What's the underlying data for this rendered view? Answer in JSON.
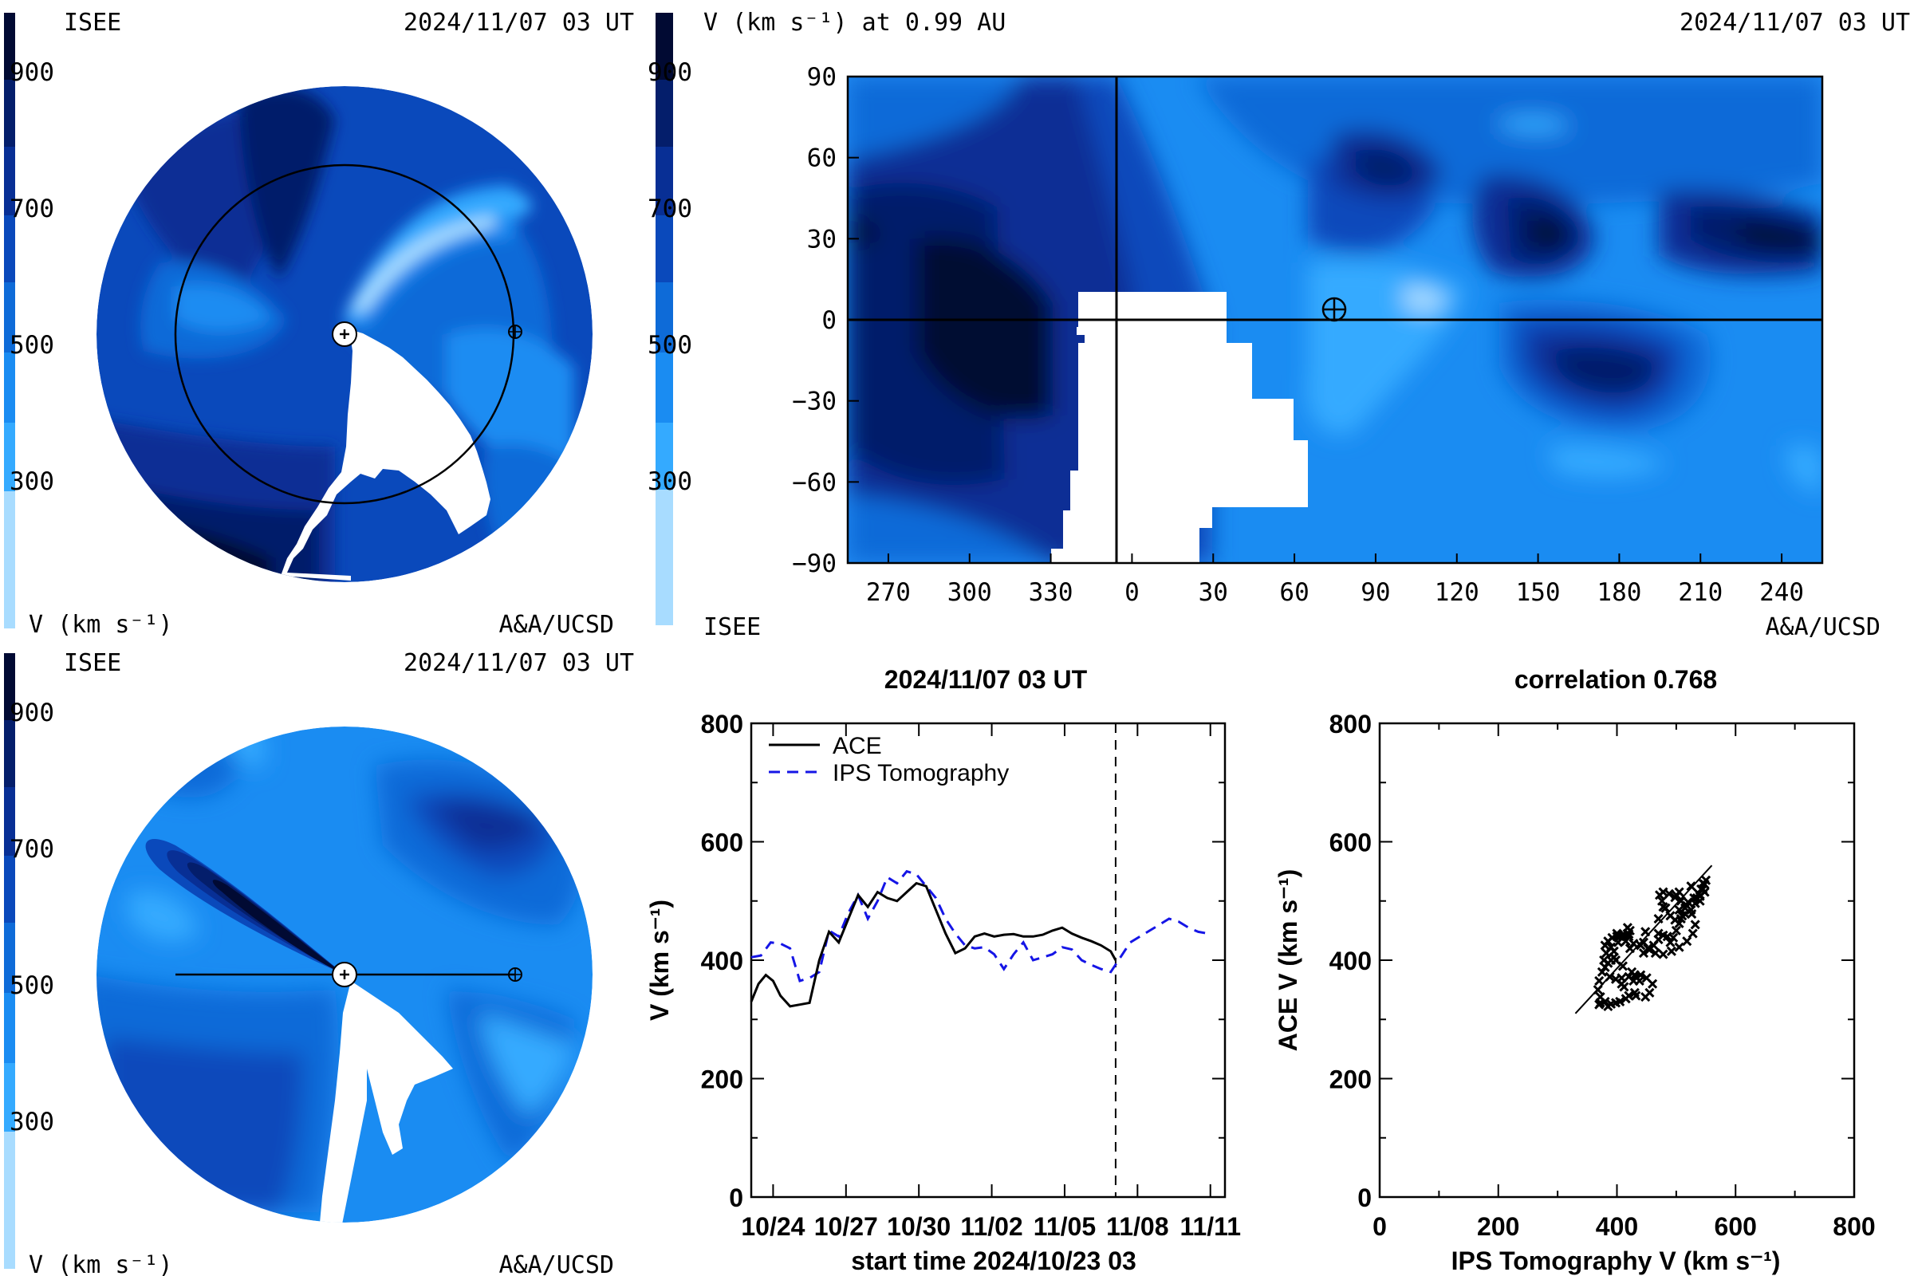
{
  "colors": {
    "c250": "#a8dcff",
    "c300": "#34aaff",
    "c400": "#1a8cf2",
    "c500": "#0e6bd8",
    "c600": "#0a49bb",
    "c700": "#082f95",
    "c800": "#041e6b",
    "c900": "#010a33",
    "ace_line": "#000000",
    "ips_line": "#1515e6"
  },
  "panels": {
    "top_left": {
      "org": "ISEE",
      "timestamp": "2024/11/07 03 UT",
      "colorbar_ticks": [
        "900",
        "700",
        "500",
        "300"
      ],
      "colorbar_label": "V (km s⁻¹)",
      "credit": "A&A/UCSD"
    },
    "bottom_left": {
      "org": "ISEE",
      "timestamp": "2024/11/07 03 UT",
      "colorbar_ticks": [
        "900",
        "700",
        "500",
        "300"
      ],
      "colorbar_label": "V (km s⁻¹)",
      "credit": "A&A/UCSD"
    },
    "map": {
      "title": "V (km s⁻¹) at 0.99 AU",
      "timestamp": "2024/11/07 03 UT",
      "org": "ISEE",
      "credit": "A&A/UCSD",
      "colorbar_ticks": [
        "900",
        "700",
        "500",
        "300"
      ]
    }
  },
  "chart_data": [
    {
      "type": "heatmap",
      "panel": "map",
      "title": "V (km s⁻¹) at 0.99 AU",
      "x_ticks": [
        "270",
        "300",
        "330",
        "0",
        "30",
        "60",
        "90",
        "120",
        "150",
        "180",
        "210",
        "240"
      ],
      "y_ticks": [
        "90",
        "60",
        "30",
        "0",
        "−30",
        "−60",
        "−90"
      ],
      "xlim": [
        255,
        615
      ],
      "ylim": [
        -90,
        90
      ],
      "crosshair_longitude": 0,
      "earth_marker": {
        "longitude": 79,
        "latitude": 4
      },
      "colorbar_range": [
        200,
        1000
      ]
    },
    {
      "type": "line",
      "panel": "timeseries",
      "title": "2024/11/07 03 UT",
      "xlabel": "start time 2024/10/23 03",
      "ylabel": "V (km s⁻¹)",
      "x_ticks": [
        "10/24",
        "10/27",
        "10/30",
        "11/02",
        "11/05",
        "11/08",
        "11/11"
      ],
      "y_ticks": [
        "0",
        "200",
        "400",
        "600",
        "800"
      ],
      "xlim": [
        0,
        19.5
      ],
      "ylim": [
        0,
        800
      ],
      "now_marker_day": 15,
      "series": [
        {
          "name": "ACE",
          "style": "solid",
          "x": [
            0,
            0.3,
            0.6,
            0.9,
            1.2,
            1.6,
            2.0,
            2.4,
            2.8,
            3.2,
            3.6,
            4.0,
            4.4,
            4.8,
            5.2,
            5.6,
            6.0,
            6.4,
            6.8,
            7.2,
            7.6,
            8.0,
            8.4,
            8.8,
            9.2,
            9.6,
            10.0,
            10.4,
            10.8,
            11.2,
            11.6,
            12.0,
            12.4,
            12.8,
            13.2,
            13.6,
            14.0,
            14.4,
            14.8,
            15.0
          ],
          "y": [
            330,
            360,
            375,
            365,
            340,
            322,
            325,
            328,
            400,
            448,
            430,
            470,
            510,
            490,
            515,
            505,
            500,
            515,
            530,
            525,
            485,
            445,
            412,
            420,
            440,
            445,
            440,
            443,
            444,
            440,
            440,
            443,
            450,
            455,
            445,
            438,
            432,
            425,
            415,
            400
          ]
        },
        {
          "name": "IPS Tomography",
          "style": "dashed",
          "x": [
            0,
            0.4,
            0.8,
            1.2,
            1.6,
            2.0,
            2.4,
            2.8,
            3.2,
            3.6,
            4.0,
            4.4,
            4.8,
            5.2,
            5.6,
            6.0,
            6.4,
            6.8,
            7.2,
            7.6,
            8.0,
            8.4,
            8.8,
            9.2,
            9.6,
            10.0,
            10.4,
            10.8,
            11.2,
            11.6,
            12.0,
            12.4,
            12.8,
            13.2,
            13.6,
            14.0,
            14.4,
            14.8,
            15.2,
            15.6,
            16.0,
            16.4,
            16.8,
            17.2,
            17.6,
            18.0,
            18.4,
            18.8
          ],
          "y": [
            405,
            408,
            430,
            428,
            420,
            365,
            370,
            380,
            450,
            440,
            480,
            510,
            470,
            500,
            540,
            530,
            550,
            545,
            525,
            505,
            470,
            445,
            425,
            420,
            422,
            410,
            385,
            410,
            430,
            400,
            405,
            410,
            422,
            418,
            400,
            392,
            385,
            380,
            405,
            430,
            440,
            450,
            460,
            470,
            465,
            455,
            448,
            445
          ]
        }
      ]
    },
    {
      "type": "scatter",
      "panel": "correlation",
      "title": "correlation 0.768",
      "xlabel": "IPS Tomography V (km s⁻¹)",
      "ylabel": "ACE V (km s⁻¹)",
      "x_ticks": [
        "0",
        "200",
        "400",
        "600",
        "800"
      ],
      "y_ticks": [
        "0",
        "200",
        "400",
        "600",
        "800"
      ],
      "xlim": [
        0,
        800
      ],
      "ylim": [
        0,
        800
      ],
      "fit_line": {
        "x": [
          330,
          560
        ],
        "y": [
          310,
          560
        ]
      },
      "points": [
        [
          405,
          330
        ],
        [
          408,
          360
        ],
        [
          430,
          375
        ],
        [
          428,
          365
        ],
        [
          420,
          340
        ],
        [
          385,
          322
        ],
        [
          370,
          325
        ],
        [
          372,
          328
        ],
        [
          398,
          400
        ],
        [
          448,
          448
        ],
        [
          445,
          430
        ],
        [
          470,
          470
        ],
        [
          500,
          510
        ],
        [
          478,
          490
        ],
        [
          505,
          515
        ],
        [
          535,
          505
        ],
        [
          540,
          500
        ],
        [
          548,
          515
        ],
        [
          545,
          530
        ],
        [
          525,
          525
        ],
        [
          505,
          485
        ],
        [
          470,
          445
        ],
        [
          445,
          412
        ],
        [
          422,
          420
        ],
        [
          420,
          440
        ],
        [
          418,
          445
        ],
        [
          400,
          440
        ],
        [
          402,
          443
        ],
        [
          420,
          444
        ],
        [
          410,
          440
        ],
        [
          405,
          440
        ],
        [
          410,
          443
        ],
        [
          422,
          450
        ],
        [
          418,
          455
        ],
        [
          400,
          445
        ],
        [
          392,
          438
        ],
        [
          385,
          432
        ],
        [
          380,
          425
        ],
        [
          395,
          415
        ],
        [
          390,
          400
        ],
        [
          412,
          355
        ],
        [
          432,
          340
        ],
        [
          448,
          338
        ],
        [
          455,
          345
        ],
        [
          460,
          360
        ],
        [
          450,
          370
        ],
        [
          440,
          375
        ],
        [
          425,
          380
        ],
        [
          410,
          390
        ],
        [
          395,
          405
        ],
        [
          385,
          395
        ],
        [
          375,
          380
        ],
        [
          370,
          365
        ],
        [
          368,
          350
        ],
        [
          372,
          338
        ],
        [
          380,
          330
        ],
        [
          390,
          326
        ],
        [
          398,
          328
        ],
        [
          415,
          335
        ],
        [
          430,
          345
        ],
        [
          438,
          365
        ],
        [
          432,
          372
        ],
        [
          420,
          372
        ],
        [
          408,
          370
        ],
        [
          398,
          368
        ],
        [
          388,
          372
        ],
        [
          380,
          388
        ],
        [
          378,
          400
        ],
        [
          382,
          412
        ],
        [
          390,
          422
        ],
        [
          402,
          430
        ],
        [
          415,
          432
        ],
        [
          428,
          428
        ],
        [
          440,
          425
        ],
        [
          452,
          420
        ],
        [
          462,
          425
        ],
        [
          470,
          435
        ],
        [
          478,
          442
        ],
        [
          485,
          440
        ],
        [
          490,
          430
        ],
        [
          495,
          438
        ],
        [
          500,
          450
        ],
        [
          505,
          462
        ],
        [
          510,
          475
        ],
        [
          515,
          488
        ],
        [
          520,
          498
        ],
        [
          530,
          505
        ],
        [
          538,
          512
        ],
        [
          542,
          520
        ],
        [
          548,
          528
        ],
        [
          550,
          535
        ],
        [
          545,
          520
        ],
        [
          540,
          508
        ],
        [
          532,
          496
        ],
        [
          525,
          485
        ],
        [
          515,
          478
        ],
        [
          508,
          470
        ],
        [
          498,
          468
        ],
        [
          490,
          475
        ],
        [
          482,
          488
        ],
        [
          476,
          500
        ],
        [
          472,
          510
        ],
        [
          478,
          515
        ],
        [
          488,
          512
        ],
        [
          498,
          506
        ],
        [
          508,
          500
        ],
        [
          518,
          492
        ],
        [
          526,
          478
        ],
        [
          532,
          460
        ],
        [
          528,
          445
        ],
        [
          518,
          432
        ],
        [
          505,
          422
        ],
        [
          492,
          415
        ],
        [
          478,
          410
        ],
        [
          465,
          412
        ],
        [
          455,
          418
        ]
      ]
    }
  ]
}
